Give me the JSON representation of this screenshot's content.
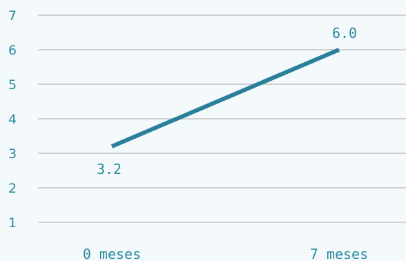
{
  "chart_data": {
    "type": "line",
    "categories": [
      "0 meses",
      "7 meses"
    ],
    "series": [
      {
        "values": [
          3.2,
          6.0
        ],
        "labels": [
          "3.2",
          "6.0"
        ]
      }
    ],
    "y_ticks": [
      "1",
      "2",
      "3",
      "4",
      "5",
      "6",
      "7"
    ],
    "ylim": [
      1,
      7
    ],
    "grid": true,
    "line_color": "#2a7f9a",
    "text_color": "#2a8a9e",
    "background": "#f4f9fc"
  }
}
